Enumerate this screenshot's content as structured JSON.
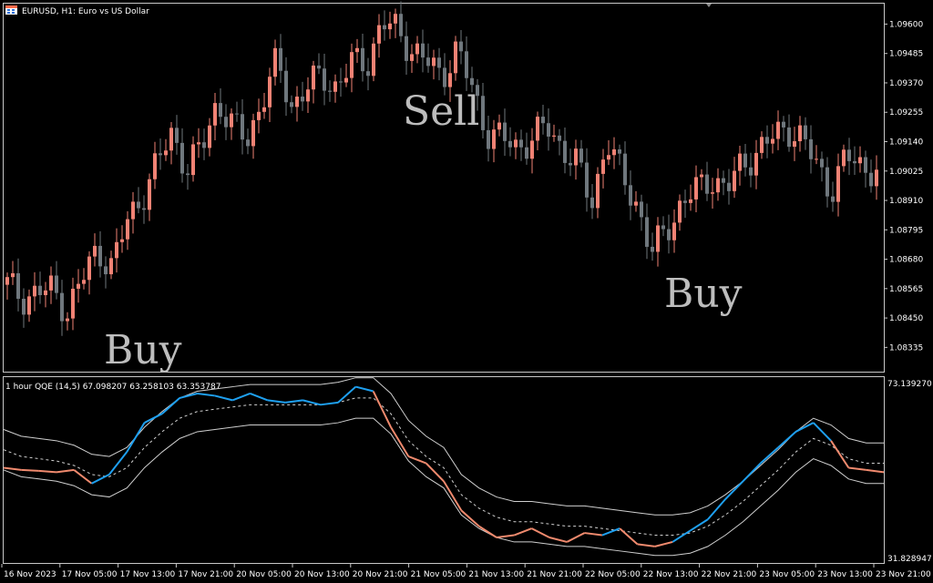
{
  "header": {
    "symbol_label": "EURUSD, H1:  Euro vs US Dollar",
    "icon": "chart-symbol-icon"
  },
  "colors": {
    "background": "#000000",
    "frame": "#c8c8c8",
    "bull": "#f08274",
    "bear": "#6f777d",
    "qqe_rising": "#1ea0f0",
    "qqe_falling": "#f08a6e",
    "band": "#cfcfcf",
    "text": "#ffffff",
    "annotation": "#bdbdbd"
  },
  "chart_data": [
    {
      "type": "candlestick",
      "title": "EURUSD, H1:  Euro vs US Dollar",
      "ylim": [
        1.0824,
        1.0968
      ],
      "y_ticks": [
        "1.09600",
        "1.09485",
        "1.09370",
        "1.09255",
        "1.09140",
        "1.09025",
        "1.08910",
        "1.08795",
        "1.08680",
        "1.08565",
        "1.08450",
        "1.08335"
      ],
      "x_ticks": [
        "16 Nov 2023",
        "17 Nov 05:00",
        "17 Nov 13:00",
        "17 Nov 21:00",
        "20 Nov 05:00",
        "20 Nov 13:00",
        "20 Nov 21:00",
        "21 Nov 05:00",
        "21 Nov 13:00",
        "21 Nov 21:00",
        "22 Nov 05:00",
        "22 Nov 13:00",
        "22 Nov 21:00",
        "23 Nov 05:00",
        "23 Nov 13:00",
        "23 Nov 21:00"
      ],
      "close_anchors": [
        1.0858,
        1.0853,
        1.0855,
        1.0856,
        1.0848,
        1.086,
        1.0872,
        1.0865,
        1.0883,
        1.0893,
        1.0905,
        1.0918,
        1.0903,
        1.0912,
        1.093,
        1.092,
        1.0915,
        1.093,
        1.0945,
        1.0928,
        1.0935,
        1.094,
        1.0935,
        1.0945,
        1.0945,
        1.096,
        1.0958,
        1.095,
        1.0945,
        1.094,
        1.095,
        1.0935,
        1.0918,
        1.0915,
        1.0912,
        1.0915,
        1.092,
        1.0912,
        1.0905,
        1.089,
        1.0915,
        1.09,
        1.089,
        1.087,
        1.088,
        1.089,
        1.0895,
        1.09,
        1.0895,
        1.0905,
        1.091,
        1.0915,
        1.092,
        1.0915,
        1.0905,
        1.0895,
        1.0908,
        1.0905,
        1.0902
      ],
      "annotations": [
        "Buy",
        "Sell",
        "Buy"
      ]
    },
    {
      "type": "line",
      "title": "1 hour QQE (14,5) 67.098207 63.258103 63.353787",
      "ylim": [
        31.828947,
        73.13927
      ],
      "y_ticks": [
        "73.139270",
        "31.828947"
      ],
      "series": [
        {
          "values": [
            53.0,
            52.5,
            52.3,
            52.0,
            52.5,
            49.5,
            51.5,
            56.5,
            63.0,
            65.0,
            68.5,
            69.5,
            69.0,
            68.0,
            69.5,
            68.0,
            67.5,
            68.0,
            67.0,
            67.5,
            71.0,
            70.0,
            62.0,
            55.5,
            54.0,
            50.0,
            43.5,
            40.0,
            37.5,
            38.0,
            39.5,
            37.5,
            36.5,
            38.5,
            38.0,
            39.5,
            36.0,
            35.5,
            36.5,
            39.0,
            41.5,
            46.0,
            50.0,
            54.0,
            57.5,
            61.0,
            63.0,
            59.0,
            53.0,
            52.5,
            52.0
          ]
        },
        {
          "values": [
            57.0,
            55.5,
            55.0,
            54.5,
            53.5,
            51.5,
            51.0,
            53.0,
            57.5,
            61.0,
            64.0,
            65.5,
            66.0,
            66.5,
            67.0,
            67.0,
            67.0,
            67.0,
            67.0,
            67.5,
            68.5,
            68.5,
            65.0,
            59.0,
            55.5,
            53.0,
            47.0,
            44.0,
            42.0,
            41.0,
            41.0,
            40.5,
            40.0,
            40.0,
            39.5,
            39.0,
            38.5,
            38.0,
            38.0,
            38.5,
            40.0,
            42.5,
            45.5,
            49.0,
            52.5,
            56.5,
            59.5,
            58.0,
            55.0,
            54.0,
            54.0
          ]
        }
      ]
    }
  ]
}
